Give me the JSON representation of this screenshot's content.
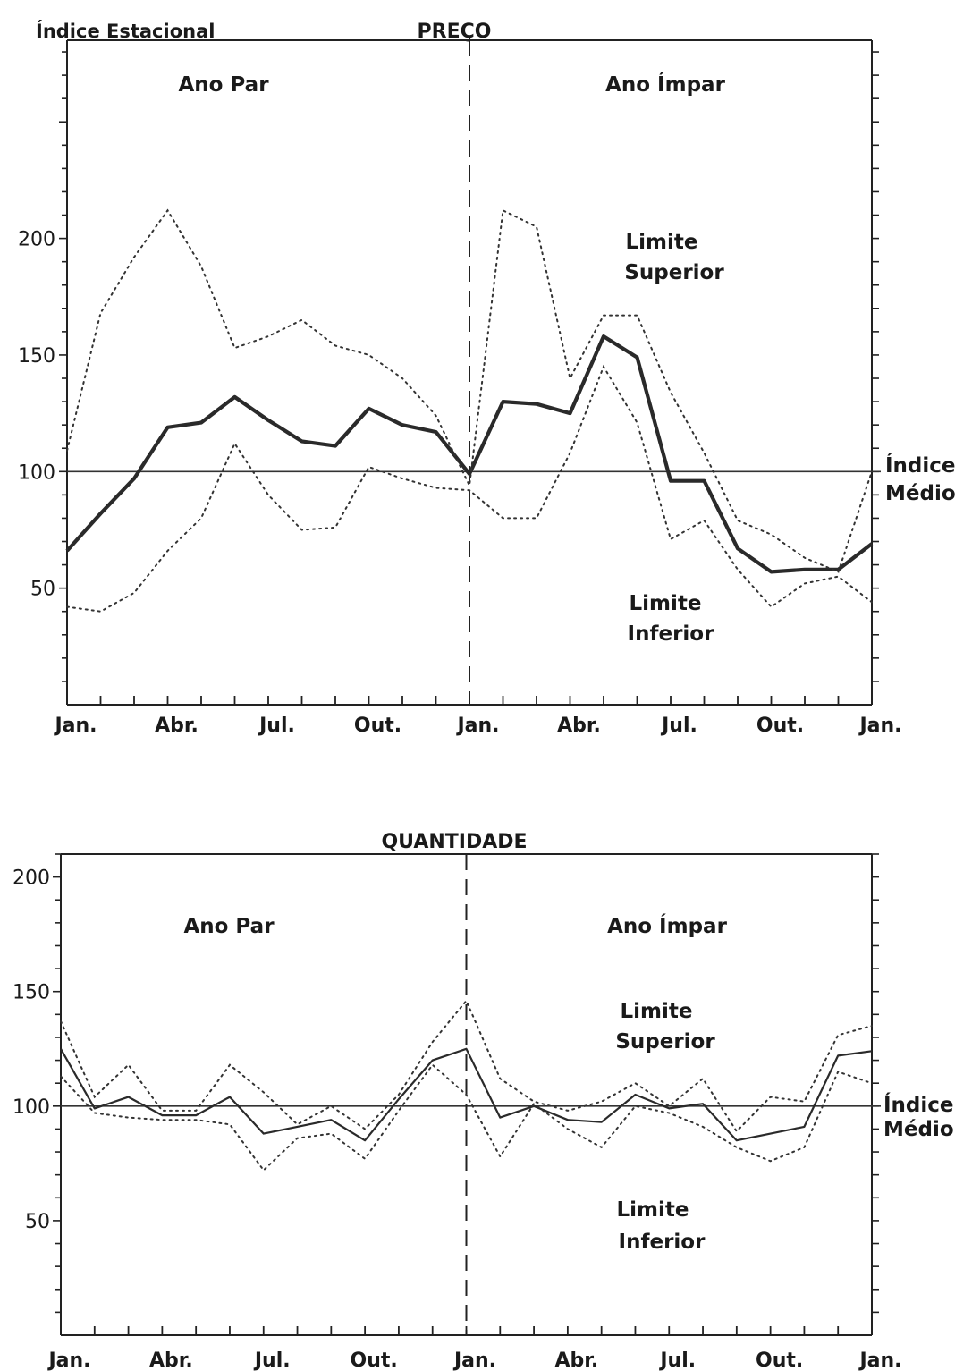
{
  "chart_data": [
    {
      "type": "line",
      "title": "PREÇO",
      "ylabel": "Índice Estacional",
      "ylim": [
        0,
        285
      ],
      "yticks": [
        50,
        100,
        150,
        200
      ],
      "x_labels": [
        "Jan.",
        "Abr.",
        "Jul.",
        "Out.",
        "Jan.",
        "Abr.",
        "Jul.",
        "Out.",
        "Jan."
      ],
      "x_label_months": [
        0,
        3,
        6,
        9,
        12,
        15,
        18,
        21,
        24
      ],
      "reference_line": {
        "value": 100,
        "label_line1": "Índice",
        "label_line2": "Médio"
      },
      "period_labels": [
        "Ano Par",
        "Ano Ímpar"
      ],
      "divider_month": 12,
      "upper_label": [
        "Limite",
        "Superior"
      ],
      "lower_label": [
        "Limite",
        "Inferior"
      ],
      "series": [
        {
          "style": "solid",
          "x": [
            0,
            1,
            2,
            3,
            4,
            5,
            6,
            7,
            8,
            9,
            10,
            11,
            12,
            13,
            14,
            15,
            16,
            17,
            18,
            19,
            20,
            21,
            22,
            23,
            24
          ],
          "values": [
            66,
            82,
            97,
            119,
            121,
            132,
            122,
            113,
            111,
            127,
            120,
            117,
            99,
            130,
            129,
            125,
            158,
            149,
            96,
            96,
            67,
            57,
            58,
            58,
            69
          ]
        },
        {
          "style": "dotted-upper",
          "x": [
            0,
            1,
            2,
            3,
            4,
            5,
            6,
            7,
            8,
            9,
            10,
            11,
            12,
            13,
            14,
            15,
            16,
            17,
            18,
            19,
            20,
            21,
            22,
            23,
            24
          ],
          "values": [
            109,
            168,
            192,
            212,
            188,
            153,
            158,
            165,
            154,
            150,
            140,
            124,
            94,
            212,
            205,
            140,
            167,
            167,
            134,
            108,
            79,
            73,
            63,
            57,
            100
          ]
        },
        {
          "style": "dotted-lower",
          "x": [
            0,
            1,
            2,
            3,
            4,
            5,
            6,
            7,
            8,
            9,
            10,
            11,
            12,
            13,
            14,
            15,
            16,
            17,
            18,
            19,
            20,
            21,
            22,
            23,
            24
          ],
          "values": [
            42,
            40,
            48,
            66,
            80,
            112,
            90,
            75,
            76,
            102,
            97,
            93,
            92,
            80,
            80,
            108,
            145,
            121,
            71,
            79,
            58,
            42,
            52,
            55,
            44
          ]
        }
      ]
    },
    {
      "type": "line",
      "title": "QUANTIDADE",
      "ylim": [
        0,
        210
      ],
      "yticks": [
        50,
        100,
        150,
        200
      ],
      "x_labels": [
        "Jan.",
        "Abr.",
        "Jul.",
        "Out.",
        "Jan.",
        "Abr.",
        "Jul.",
        "Out.",
        "Jan."
      ],
      "x_label_months": [
        0,
        3,
        6,
        9,
        12,
        15,
        18,
        21,
        24
      ],
      "reference_line": {
        "value": 100,
        "label_line1": "Índice",
        "label_line2": "Médio"
      },
      "period_labels": [
        "Ano Par",
        "Ano Ímpar"
      ],
      "divider_month": 12,
      "upper_label": [
        "Limite",
        "Superior"
      ],
      "lower_label": [
        "Limite",
        "Inferior"
      ],
      "series": [
        {
          "style": "solid",
          "x": [
            0,
            1,
            2,
            3,
            4,
            5,
            6,
            7,
            8,
            9,
            10,
            11,
            12,
            13,
            14,
            15,
            16,
            17,
            18,
            19,
            20,
            21,
            22,
            23,
            24
          ],
          "values": [
            125,
            99,
            104,
            96,
            96,
            104,
            88,
            91,
            94,
            85,
            103,
            120,
            125,
            95,
            100,
            94,
            93,
            105,
            99,
            101,
            85,
            88,
            91,
            122,
            124
          ]
        },
        {
          "style": "dotted-upper",
          "x": [
            0,
            1,
            2,
            3,
            4,
            5,
            6,
            7,
            8,
            9,
            10,
            11,
            12,
            13,
            14,
            15,
            16,
            17,
            18,
            19,
            20,
            21,
            22,
            23,
            24
          ],
          "values": [
            137,
            104,
            118,
            98,
            98,
            118,
            106,
            92,
            100,
            90,
            105,
            128,
            146,
            112,
            102,
            98,
            102,
            110,
            100,
            112,
            89,
            104,
            102,
            131,
            135
          ]
        },
        {
          "style": "dotted-lower",
          "x": [
            0,
            1,
            2,
            3,
            4,
            5,
            6,
            7,
            8,
            9,
            10,
            11,
            12,
            13,
            14,
            15,
            16,
            17,
            18,
            19,
            20,
            21,
            22,
            23,
            24
          ],
          "values": [
            113,
            97,
            95,
            94,
            94,
            92,
            72,
            86,
            88,
            77,
            98,
            118,
            105,
            78,
            101,
            90,
            82,
            100,
            97,
            91,
            82,
            76,
            82,
            115,
            110
          ]
        }
      ]
    }
  ]
}
